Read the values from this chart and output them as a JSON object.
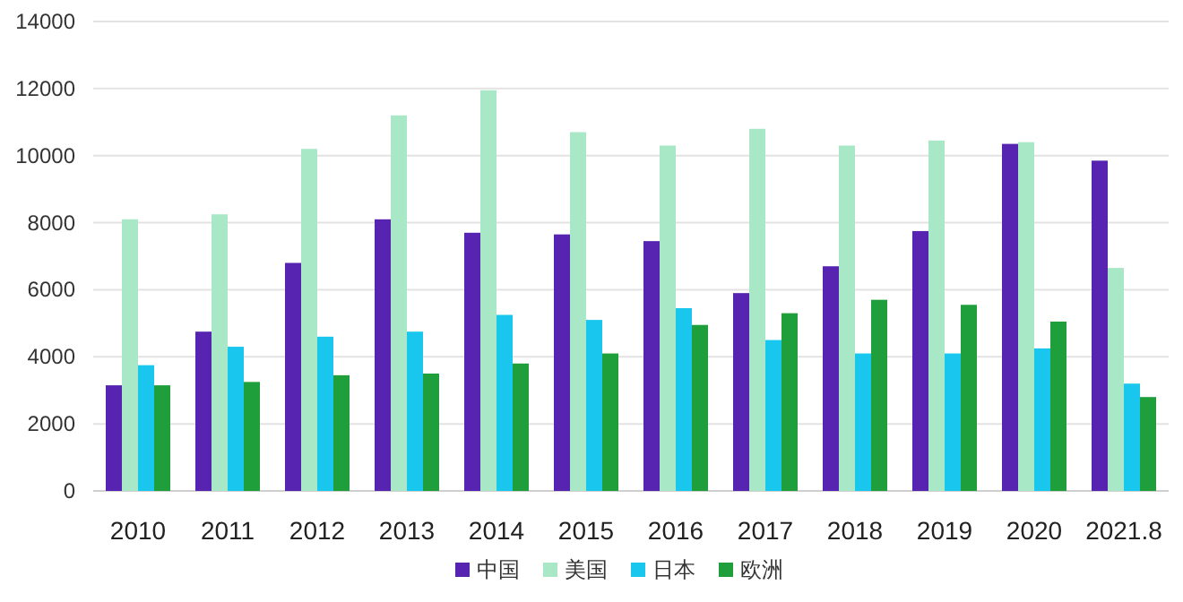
{
  "chart_data": {
    "type": "bar",
    "categories": [
      "2010",
      "2011",
      "2012",
      "2013",
      "2014",
      "2015",
      "2016",
      "2017",
      "2018",
      "2019",
      "2020",
      "2021.8"
    ],
    "series": [
      {
        "name": "中国",
        "color": "#5624b0",
        "values": [
          3150,
          4750,
          6800,
          8100,
          7700,
          7650,
          7450,
          5900,
          6700,
          7750,
          10350,
          9850
        ]
      },
      {
        "name": "美国",
        "color": "#a8e8c6",
        "values": [
          8100,
          8250,
          10200,
          11200,
          11950,
          10700,
          10300,
          10800,
          10300,
          10450,
          10400,
          6650
        ]
      },
      {
        "name": "日本",
        "color": "#19c7ee",
        "values": [
          3750,
          4300,
          4600,
          4750,
          5250,
          5100,
          5450,
          4500,
          4100,
          4100,
          4250,
          3200
        ]
      },
      {
        "name": "欧洲",
        "color": "#1f9e3c",
        "values": [
          3150,
          3250,
          3450,
          3500,
          3800,
          4100,
          4950,
          5300,
          5700,
          5550,
          5050,
          2800
        ]
      }
    ],
    "ylim": [
      0,
      14000
    ],
    "yticks": [
      0,
      2000,
      4000,
      6000,
      8000,
      10000,
      12000,
      14000
    ],
    "grid": "y",
    "legend": "bottom"
  }
}
